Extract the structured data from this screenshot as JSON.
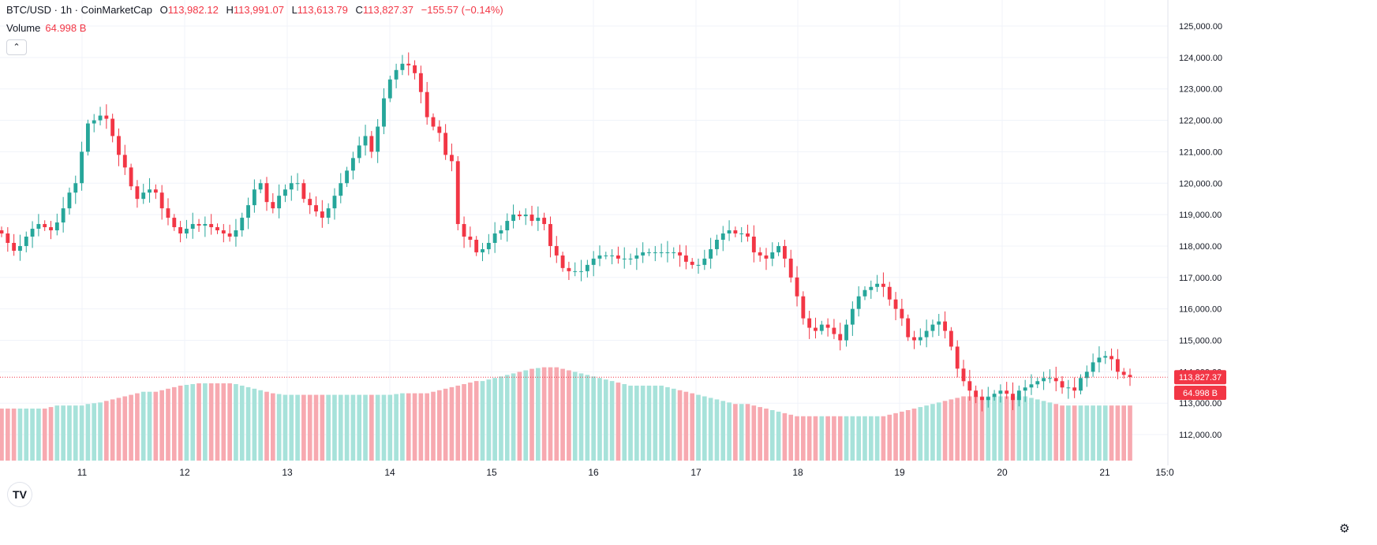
{
  "header": {
    "symbol": "BTC/USD · 1h · CoinMarketCap",
    "open_label": "O",
    "open": "113,982.12",
    "high_label": "H",
    "high": "113,991.07",
    "low_label": "L",
    "low": "113,613.79",
    "close_label": "C",
    "close": "113,827.37",
    "change": "−155.57 (−0.14%)",
    "volume_label": "Volume",
    "volume": "64.998 B"
  },
  "collapse_icon": "chevron-up-icon",
  "logo": "tradingview-logo",
  "settings_icon": "gear-icon",
  "colors": {
    "up": "#26a69a",
    "down": "#f23645",
    "vol_up": "#a7e2da",
    "vol_down": "#f7a9b0",
    "grid": "#f0f3fa"
  },
  "chart_data": {
    "type": "candlestick",
    "y_ticks": [
      "125,000.00",
      "124,000.00",
      "123,000.00",
      "122,000.00",
      "121,000.00",
      "120,000.00",
      "119,000.00",
      "118,000.00",
      "117,000.00",
      "116,000.00",
      "115,000.00",
      "114,000.00",
      "113,000.00",
      "112,000.00"
    ],
    "ylim": [
      111400,
      125500
    ],
    "x_ticks": [
      "11",
      "12",
      "13",
      "14",
      "15",
      "16",
      "17",
      "18",
      "19",
      "20",
      "21",
      "15:0"
    ],
    "last_price_label": "113,827.37",
    "last_volume_label": "64.998 B",
    "last_price": 113827.37,
    "closes": [
      118400,
      118100,
      117850,
      118000,
      118300,
      118550,
      118700,
      118600,
      118500,
      118750,
      119200,
      119700,
      120000,
      121000,
      121900,
      122000,
      122150,
      122050,
      121500,
      120900,
      120500,
      119900,
      119500,
      119700,
      119800,
      119700,
      119200,
      118900,
      118600,
      118400,
      118550,
      118700,
      118650,
      118700,
      118600,
      118500,
      118400,
      118300,
      118500,
      118900,
      119300,
      119800,
      120000,
      119400,
      119200,
      119600,
      119800,
      120000,
      120000,
      119500,
      119300,
      119100,
      118900,
      119200,
      119600,
      120000,
      120400,
      120800,
      121200,
      121500,
      121000,
      121800,
      122700,
      123300,
      123600,
      123800,
      123750,
      123500,
      122900,
      122100,
      121800,
      121600,
      120900,
      120700,
      118700,
      118300,
      118200,
      117800,
      117900,
      118100,
      118400,
      118500,
      118800,
      119000,
      118950,
      119000,
      118800,
      118900,
      118700,
      118000,
      117700,
      117300,
      117200,
      117200,
      117200,
      117400,
      117600,
      117700,
      117700,
      117700,
      117600,
      117600,
      117600,
      117700,
      117800,
      117800,
      117800,
      117800,
      117800,
      117800,
      117700,
      117500,
      117400,
      117400,
      117600,
      117900,
      118200,
      118400,
      118500,
      118400,
      118400,
      118300,
      117800,
      117700,
      117600,
      117800,
      118000,
      117600,
      117000,
      116400,
      115700,
      115400,
      115300,
      115500,
      115400,
      115200,
      115000,
      115500,
      116000,
      116400,
      116600,
      116700,
      116800,
      116700,
      116300,
      116000,
      115700,
      115100,
      115000,
      115100,
      115300,
      115500,
      115600,
      115300,
      114800,
      114100,
      113700,
      113400,
      113200,
      113100,
      113200,
      113300,
      113400,
      113300,
      113100,
      113400,
      113500,
      113600,
      113700,
      113800,
      113800,
      113700,
      113500,
      113500,
      113400,
      113800,
      114000,
      114300,
      114450,
      114500,
      114400,
      114000,
      113900,
      113830
    ],
    "volumes_B": [
      68,
      68,
      68,
      68,
      68,
      68,
      68,
      68,
      70,
      72,
      72,
      72,
      72,
      72,
      74,
      75,
      76,
      78,
      80,
      82,
      84,
      86,
      88,
      90,
      90,
      90,
      92,
      94,
      96,
      98,
      99,
      100,
      101,
      101,
      101,
      101,
      101,
      101,
      100,
      98,
      96,
      94,
      92,
      90,
      88,
      87,
      86,
      86,
      86,
      86,
      86,
      86,
      86,
      86,
      86,
      86,
      86,
      86,
      86,
      86,
      86,
      86,
      86,
      86,
      87,
      88,
      88,
      88,
      88,
      88,
      90,
      92,
      94,
      96,
      98,
      100,
      102,
      104,
      104,
      106,
      108,
      110,
      112,
      114,
      116,
      118,
      120,
      121,
      122,
      122,
      122,
      120,
      118,
      116,
      114,
      112,
      110,
      108,
      106,
      104,
      102,
      100,
      98,
      98,
      98,
      98,
      98,
      98,
      96,
      94,
      92,
      90,
      88,
      86,
      84,
      82,
      80,
      78,
      76,
      74,
      74,
      74,
      72,
      70,
      68,
      66,
      64,
      62,
      60,
      58,
      58,
      58,
      58,
      58,
      58,
      58,
      58,
      58,
      58,
      58,
      58,
      58,
      58,
      58,
      60,
      62,
      64,
      66,
      68,
      70,
      72,
      74,
      76,
      78,
      80,
      82,
      84,
      84,
      84,
      84,
      84,
      84,
      84,
      84,
      84,
      84,
      84,
      82,
      80,
      78,
      76,
      74,
      72,
      72,
      72,
      72,
      72,
      72,
      72,
      72,
      72,
      72,
      72,
      72,
      72,
      72,
      72,
      72,
      72,
      72,
      72,
      72,
      72,
      70,
      68,
      66,
      65,
      65
    ]
  }
}
